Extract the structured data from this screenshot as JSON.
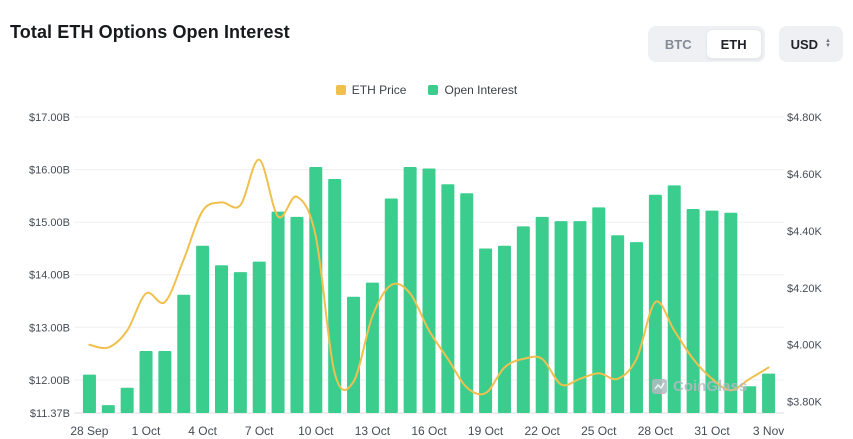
{
  "header": {
    "title": "Total ETH Options Open Interest",
    "asset_toggle": {
      "options": [
        "BTC",
        "ETH"
      ],
      "selected": "ETH"
    },
    "currency": "USD"
  },
  "legend": {
    "items": [
      {
        "label": "ETH Price",
        "color": "#F0C04E"
      },
      {
        "label": "Open Interest",
        "color": "#3BCD8E"
      }
    ]
  },
  "watermark": "CoinGlass",
  "chart_data": {
    "type": "bar+line",
    "title": "Total ETH Options Open Interest",
    "x": [
      "28 Sep",
      "29 Sep",
      "30 Sep",
      "1 Oct",
      "2 Oct",
      "3 Oct",
      "4 Oct",
      "5 Oct",
      "6 Oct",
      "7 Oct",
      "8 Oct",
      "9 Oct",
      "10 Oct",
      "11 Oct",
      "12 Oct",
      "13 Oct",
      "14 Oct",
      "15 Oct",
      "16 Oct",
      "17 Oct",
      "18 Oct",
      "19 Oct",
      "20 Oct",
      "21 Oct",
      "22 Oct",
      "23 Oct",
      "24 Oct",
      "25 Oct",
      "26 Oct",
      "27 Oct",
      "28 Oct",
      "29 Oct",
      "30 Oct",
      "31 Oct",
      "1 Nov",
      "2 Nov",
      "3 Nov"
    ],
    "x_tick_step": 3,
    "series": [
      {
        "name": "Open Interest",
        "kind": "bar",
        "axis": "left",
        "unit": "USD billions",
        "color": "#3BCD8E",
        "values": [
          12.1,
          11.52,
          11.85,
          12.55,
          12.55,
          13.62,
          14.55,
          14.18,
          14.05,
          14.25,
          15.2,
          15.1,
          16.05,
          15.82,
          13.58,
          13.85,
          15.45,
          16.05,
          16.02,
          15.72,
          15.55,
          14.5,
          14.55,
          14.92,
          15.1,
          15.02,
          15.02,
          15.28,
          14.75,
          14.62,
          15.52,
          15.7,
          15.25,
          15.22,
          15.18,
          11.88,
          12.12
        ]
      },
      {
        "name": "ETH Price",
        "kind": "line",
        "axis": "right",
        "unit": "USD thousands",
        "color": "#F0C04E",
        "values": [
          4.0,
          3.99,
          4.05,
          4.18,
          4.15,
          4.3,
          4.47,
          4.5,
          4.49,
          4.65,
          4.45,
          4.52,
          4.38,
          3.9,
          3.87,
          4.1,
          4.21,
          4.18,
          4.05,
          3.95,
          3.85,
          3.83,
          3.92,
          3.95,
          3.95,
          3.86,
          3.88,
          3.9,
          3.88,
          3.95,
          4.15,
          4.05,
          3.95,
          3.88,
          3.84,
          3.88,
          3.92
        ]
      }
    ],
    "left_axis": {
      "min": 11.37,
      "max": 17.0,
      "ticks": [
        {
          "label": "$17.00B",
          "value": 17.0
        },
        {
          "label": "$16.00B",
          "value": 16.0
        },
        {
          "label": "$15.00B",
          "value": 15.0
        },
        {
          "label": "$14.00B",
          "value": 14.0
        },
        {
          "label": "$13.00B",
          "value": 13.0
        },
        {
          "label": "$12.00B",
          "value": 12.0
        },
        {
          "label": "$11.37B",
          "value": 11.37
        }
      ]
    },
    "right_axis": {
      "min": 3.76,
      "max": 4.8,
      "ticks": [
        {
          "label": "$4.80K",
          "value": 4.8
        },
        {
          "label": "$4.60K",
          "value": 4.6
        },
        {
          "label": "$4.40K",
          "value": 4.4
        },
        {
          "label": "$4.20K",
          "value": 4.2
        },
        {
          "label": "$4.00K",
          "value": 4.0
        },
        {
          "label": "$3.80K",
          "value": 3.8
        }
      ]
    },
    "grid": true,
    "legend_position": "top-center"
  }
}
